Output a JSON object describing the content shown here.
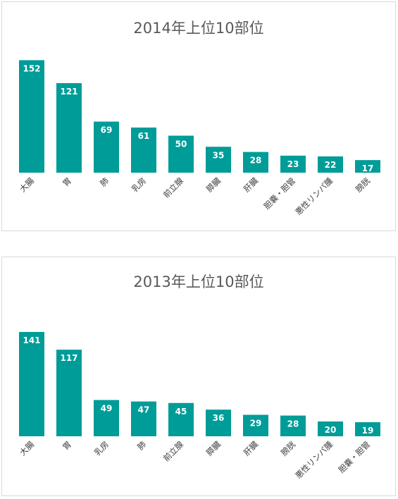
{
  "chart_data": [
    {
      "type": "bar",
      "title": "2014年上位10部位",
      "categories": [
        "大腸",
        "胃",
        "肺",
        "乳房",
        "前立腺",
        "膵臓",
        "肝臓",
        "胆嚢・胆管",
        "悪性リンパ腫",
        "膀胱"
      ],
      "values": [
        152,
        121,
        69,
        61,
        50,
        35,
        28,
        23,
        22,
        17
      ],
      "color": "#009c98",
      "grid": false,
      "legend": "none"
    },
    {
      "type": "bar",
      "title": "2013年上位10部位",
      "categories": [
        "大腸",
        "胃",
        "乳房",
        "肺",
        "前立腺",
        "膵臓",
        "肝臓",
        "膀胱",
        "悪性リンパ腫",
        "胆嚢・胆管"
      ],
      "values": [
        141,
        117,
        49,
        47,
        45,
        36,
        29,
        28,
        20,
        19
      ],
      "color": "#009c98",
      "grid": false,
      "legend": "none"
    }
  ]
}
